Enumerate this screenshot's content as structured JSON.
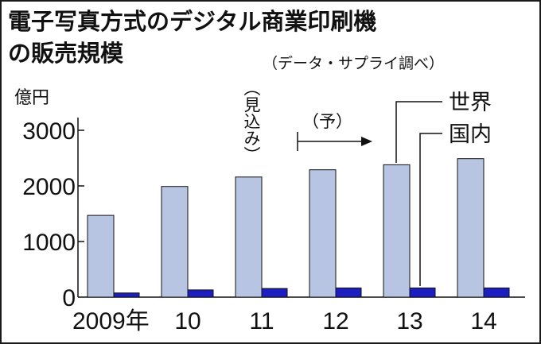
{
  "header": {
    "title_line1": "電子写真方式のデジタル商業印刷機",
    "title_line2": "の販売規模",
    "source": "（データ・サプライ調べ）"
  },
  "chart_data": {
    "type": "bar",
    "unit_label": "億円",
    "categories": [
      "2009年",
      "10",
      "11",
      "12",
      "13",
      "14"
    ],
    "series": [
      {
        "name": "世界",
        "values": [
          1470,
          1990,
          2160,
          2290,
          2380,
          2490
        ],
        "color": "#b7c5e2"
      },
      {
        "name": "国内",
        "values": [
          75,
          130,
          155,
          165,
          165,
          165
        ],
        "color": "#1c1ec0"
      }
    ],
    "ylim": [
      0,
      3000
    ],
    "yticks": [
      "0",
      "1000",
      "2000",
      "3000"
    ],
    "annotations": {
      "estimate": "（見込み）",
      "forecast": "（予）"
    },
    "grid": false,
    "legend": "callout labels, upper right"
  }
}
